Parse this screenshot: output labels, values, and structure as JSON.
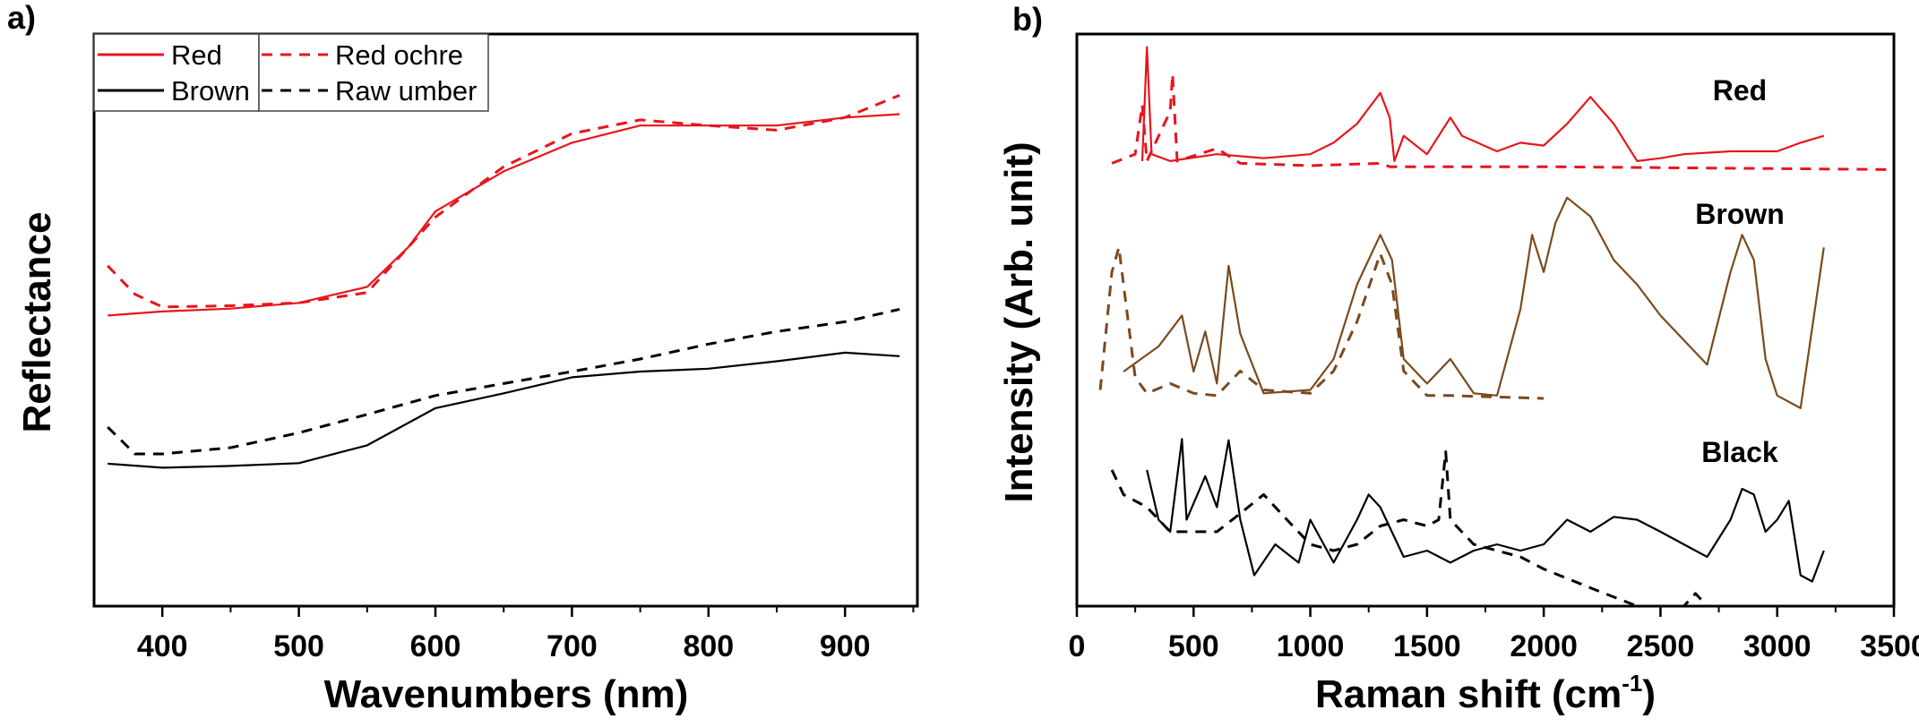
{
  "colors": {
    "red": "#e8141c",
    "brown": "#7a4a1e",
    "black": "#000000"
  },
  "chart_data": [
    {
      "type": "line",
      "panel_label": "a)",
      "xlabel": "Wavenumbers (nm)",
      "ylabel": "Reflectance",
      "xlim": [
        350,
        953
      ],
      "ylim": [
        0,
        1
      ],
      "xticks": [
        400,
        500,
        600,
        700,
        800,
        900
      ],
      "yticks_shown": false,
      "grid": false,
      "legend_placement": "top-left",
      "series": [
        {
          "name": "Red",
          "color": "#e8141c",
          "style": "solid",
          "x": [
            360,
            400,
            450,
            500,
            550,
            580,
            600,
            650,
            700,
            750,
            800,
            850,
            900,
            940
          ],
          "y": [
            0.508,
            0.515,
            0.52,
            0.53,
            0.558,
            0.627,
            0.69,
            0.76,
            0.81,
            0.84,
            0.84,
            0.84,
            0.854,
            0.86
          ]
        },
        {
          "name": "Red ochre",
          "color": "#e8141c",
          "style": "dashed",
          "x": [
            360,
            380,
            400,
            450,
            500,
            550,
            600,
            650,
            700,
            750,
            800,
            850,
            900,
            940
          ],
          "y": [
            0.595,
            0.545,
            0.523,
            0.525,
            0.53,
            0.548,
            0.68,
            0.768,
            0.826,
            0.85,
            0.84,
            0.832,
            0.854,
            0.893
          ]
        },
        {
          "name": "Brown",
          "color": "#000000",
          "style": "solid",
          "x": [
            360,
            400,
            450,
            500,
            550,
            600,
            650,
            700,
            750,
            800,
            850,
            900,
            940
          ],
          "y": [
            0.249,
            0.242,
            0.245,
            0.25,
            0.281,
            0.346,
            0.372,
            0.4,
            0.41,
            0.415,
            0.428,
            0.443,
            0.437
          ]
        },
        {
          "name": "Raw umber",
          "color": "#000000",
          "style": "dashed",
          "x": [
            360,
            380,
            400,
            450,
            500,
            550,
            600,
            650,
            700,
            750,
            800,
            850,
            900,
            940
          ],
          "y": [
            0.313,
            0.266,
            0.266,
            0.277,
            0.303,
            0.335,
            0.368,
            0.389,
            0.41,
            0.432,
            0.458,
            0.48,
            0.497,
            0.519
          ]
        }
      ]
    },
    {
      "type": "line",
      "panel_label": "b)",
      "xlabel": "Raman shift (cm",
      "xlabel_sup": "-1",
      "xlabel_end": ")",
      "ylabel": "Intensity (Arb. unit)",
      "xlim": [
        0,
        3500
      ],
      "ylim": [
        0,
        1
      ],
      "xticks": [
        0,
        500,
        1000,
        1500,
        2000,
        2500,
        3000,
        3500
      ],
      "yticks_shown": false,
      "grid": false,
      "annotations": [
        "Red",
        "Brown",
        "Black"
      ],
      "series": [
        {
          "group": "Red",
          "color": "#e8141c",
          "style": "solid",
          "x": [
            280,
            300,
            320,
            400,
            600,
            800,
            1000,
            1100,
            1200,
            1300,
            1340,
            1360,
            1400,
            1500,
            1600,
            1650,
            1800,
            1900,
            2000,
            2100,
            2200,
            2300,
            2400,
            2500,
            2600,
            2800,
            3000,
            3100,
            3200
          ],
          "y": [
            0.778,
            0.977,
            0.79,
            0.778,
            0.79,
            0.783,
            0.79,
            0.81,
            0.843,
            0.897,
            0.854,
            0.778,
            0.822,
            0.79,
            0.854,
            0.822,
            0.795,
            0.81,
            0.805,
            0.843,
            0.89,
            0.843,
            0.778,
            0.783,
            0.79,
            0.795,
            0.795,
            0.81,
            0.822
          ]
        },
        {
          "group": "Red",
          "color": "#e8141c",
          "style": "dashed",
          "x": [
            150,
            250,
            280,
            300,
            400,
            410,
            430,
            600,
            700,
            1000,
            1300,
            1340,
            2000,
            3500
          ],
          "y": [
            0.774,
            0.79,
            0.876,
            0.778,
            0.865,
            0.93,
            0.778,
            0.8,
            0.774,
            0.77,
            0.774,
            0.768,
            0.768,
            0.763
          ]
        },
        {
          "group": "Brown",
          "color": "#7a4a1e",
          "style": "solid",
          "x": [
            200,
            350,
            450,
            500,
            550,
            600,
            650,
            700,
            800,
            1000,
            1100,
            1200,
            1300,
            1350,
            1400,
            1500,
            1600,
            1700,
            1800,
            1900,
            1950,
            2000,
            2050,
            2100,
            2200,
            2300,
            2400,
            2500,
            2600,
            2700,
            2800,
            2850,
            2900,
            2950,
            3000,
            3100,
            3200
          ],
          "y": [
            0.41,
            0.454,
            0.508,
            0.41,
            0.48,
            0.389,
            0.595,
            0.476,
            0.372,
            0.378,
            0.432,
            0.562,
            0.649,
            0.605,
            0.432,
            0.389,
            0.432,
            0.372,
            0.368,
            0.519,
            0.649,
            0.584,
            0.67,
            0.714,
            0.681,
            0.605,
            0.562,
            0.508,
            0.465,
            0.422,
            0.584,
            0.649,
            0.605,
            0.432,
            0.368,
            0.346,
            0.627
          ]
        },
        {
          "group": "Brown",
          "color": "#7a4a1e",
          "style": "dashed",
          "x": [
            100,
            150,
            180,
            200,
            250,
            300,
            400,
            500,
            600,
            700,
            800,
            1000,
            1100,
            1200,
            1300,
            1350,
            1400,
            1500,
            1600,
            2000
          ],
          "y": [
            0.378,
            0.584,
            0.627,
            0.562,
            0.4,
            0.372,
            0.389,
            0.372,
            0.368,
            0.411,
            0.378,
            0.372,
            0.411,
            0.497,
            0.616,
            0.562,
            0.411,
            0.368,
            0.368,
            0.363
          ]
        },
        {
          "group": "Black",
          "color": "#000000",
          "style": "solid",
          "x": [
            300,
            350,
            400,
            450,
            470,
            550,
            600,
            650,
            700,
            760,
            850,
            950,
            1000,
            1100,
            1200,
            1250,
            1300,
            1400,
            1500,
            1600,
            1700,
            1800,
            1900,
            2000,
            2100,
            2200,
            2300,
            2400,
            2500,
            2600,
            2700,
            2800,
            2850,
            2900,
            2950,
            3000,
            3050,
            3100,
            3150,
            3200
          ],
          "y": [
            0.238,
            0.151,
            0.13,
            0.292,
            0.151,
            0.227,
            0.173,
            0.29,
            0.151,
            0.054,
            0.108,
            0.076,
            0.151,
            0.076,
            0.151,
            0.195,
            0.173,
            0.086,
            0.097,
            0.076,
            0.097,
            0.108,
            0.097,
            0.108,
            0.151,
            0.13,
            0.156,
            0.151,
            0.13,
            0.108,
            0.086,
            0.151,
            0.205,
            0.195,
            0.13,
            0.151,
            0.184,
            0.054,
            0.043,
            0.097
          ]
        },
        {
          "group": "Black",
          "color": "#000000",
          "style": "dashed",
          "x": [
            150,
            200,
            300,
            400,
            500,
            600,
            700,
            800,
            900,
            1000,
            1100,
            1200,
            1300,
            1400,
            1500,
            1550,
            1580,
            1600,
            1700,
            1900,
            2000,
            2200,
            2400,
            2500,
            2600,
            2650,
            2700
          ],
          "y": [
            0.238,
            0.195,
            0.173,
            0.13,
            0.13,
            0.13,
            0.162,
            0.195,
            0.151,
            0.108,
            0.097,
            0.108,
            0.14,
            0.151,
            0.14,
            0.151,
            0.27,
            0.151,
            0.108,
            0.086,
            0.065,
            0.032,
            0.0,
            0.0,
            0.0,
            0.022,
            0.0
          ]
        }
      ]
    }
  ]
}
